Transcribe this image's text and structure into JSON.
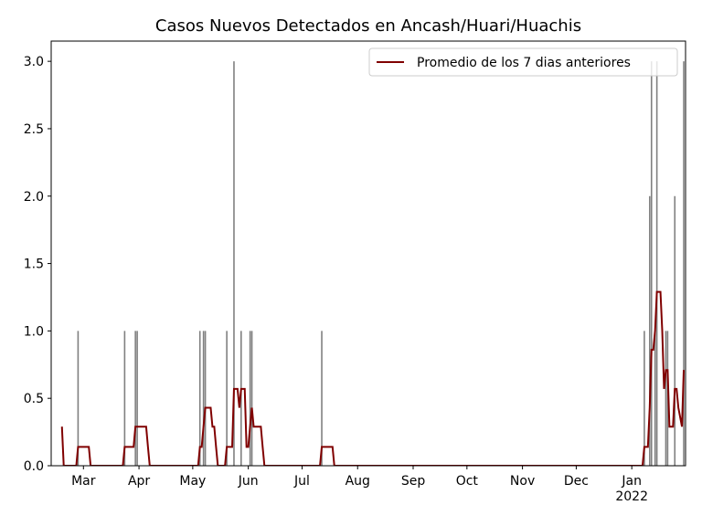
{
  "chart_data": {
    "type": "bar",
    "title": "Casos Nuevos Detectados en Ancash/Huari/Huachis",
    "xlim": [
      42,
      396
    ],
    "ylim": [
      0,
      3.15
    ],
    "xticks": [
      {
        "value": 60,
        "label": "Mar"
      },
      {
        "value": 91,
        "label": "Apr"
      },
      {
        "value": 121,
        "label": "May"
      },
      {
        "value": 152,
        "label": "Jun"
      },
      {
        "value": 182,
        "label": "Jul"
      },
      {
        "value": 213,
        "label": "Aug"
      },
      {
        "value": 244,
        "label": "Sep"
      },
      {
        "value": 274,
        "label": "Oct"
      },
      {
        "value": 305,
        "label": "Nov"
      },
      {
        "value": 335,
        "label": "Dec"
      },
      {
        "value": 366,
        "label": "Jan\n2022"
      }
    ],
    "yticks": [
      {
        "value": 0,
        "label": "0.0"
      },
      0.5,
      {
        "value": 1,
        "label": "1.0"
      },
      1.5,
      {
        "value": 2,
        "label": "2.0"
      },
      2.5,
      {
        "value": 3,
        "label": "3.0"
      }
    ],
    "legend": "upper right",
    "series": [
      {
        "type": "bar",
        "color": "#808080",
        "x": [
          57,
          83,
          89,
          90,
          125,
          127,
          128,
          140,
          144,
          148,
          153,
          154,
          193,
          373,
          376,
          377,
          379,
          380,
          385,
          386,
          390,
          395
        ],
        "values": [
          1,
          1,
          1,
          1,
          1,
          1,
          1,
          1,
          3,
          1,
          1,
          1,
          1,
          1,
          2,
          3,
          1,
          3,
          1,
          1,
          2,
          3
        ]
      },
      {
        "type": "line",
        "name": "Promedio de los 7 dias anteriores",
        "color": "#800000",
        "x": [
          48,
          49,
          56,
          57,
          63,
          64,
          82,
          83,
          88,
          89,
          95,
          96,
          97,
          124,
          125,
          126,
          127,
          128,
          131,
          132,
          133,
          134,
          135,
          139,
          140,
          143,
          144,
          146,
          147,
          148,
          150,
          151,
          152,
          153,
          154,
          155,
          159,
          160,
          161,
          192,
          193,
          199,
          200,
          372,
          373,
          375,
          376,
          377,
          378,
          379,
          380,
          382,
          383,
          384,
          385,
          386,
          387,
          389,
          390,
          391,
          392,
          394,
          395
        ],
        "values": [
          0.29,
          0,
          0,
          0.14,
          0.14,
          0,
          0,
          0.14,
          0.14,
          0.29,
          0.29,
          0.14,
          0,
          0,
          0.14,
          0.14,
          0.29,
          0.43,
          0.43,
          0.29,
          0.29,
          0.14,
          0,
          0,
          0.14,
          0.14,
          0.57,
          0.57,
          0.43,
          0.57,
          0.57,
          0.14,
          0.14,
          0.29,
          0.43,
          0.29,
          0.29,
          0.14,
          0,
          0,
          0.14,
          0.14,
          0,
          0,
          0.14,
          0.14,
          0.43,
          0.86,
          0.86,
          1.0,
          1.29,
          1.29,
          1.0,
          0.57,
          0.71,
          0.71,
          0.29,
          0.29,
          0.57,
          0.57,
          0.43,
          0.29,
          0.71
        ]
      }
    ]
  }
}
